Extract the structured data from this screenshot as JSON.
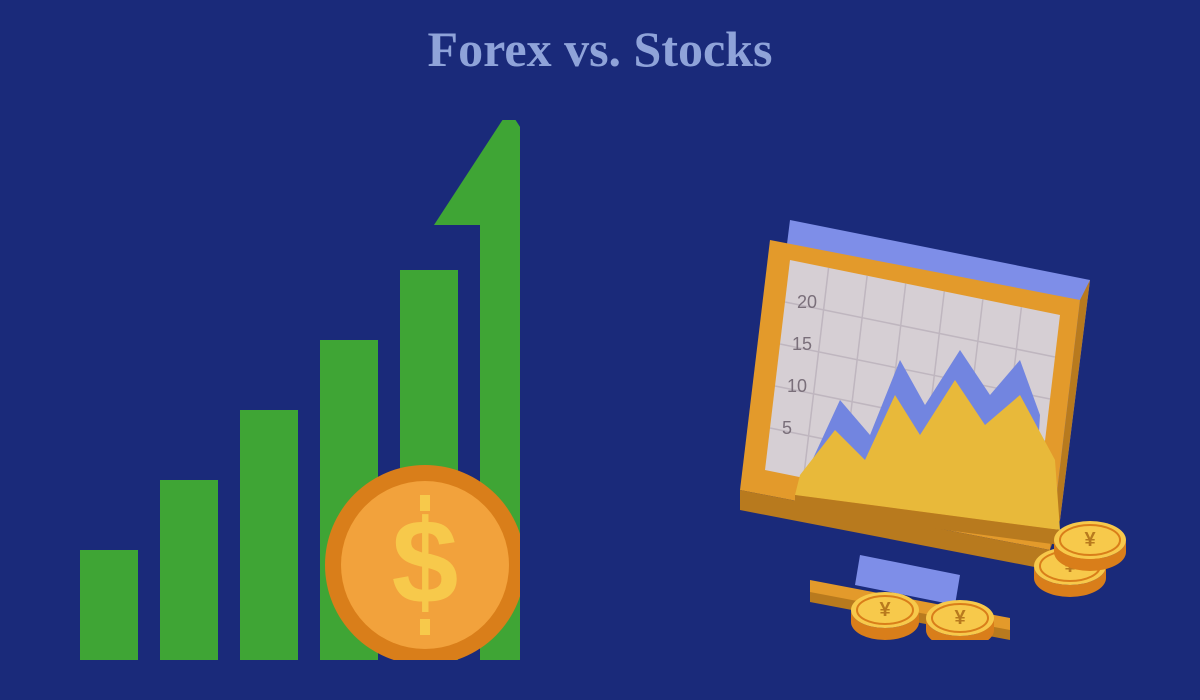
{
  "colors": {
    "background": "#1a2a7a",
    "title_text": "#8fa3d9",
    "bar_green": "#3fa535",
    "bar_green_dark": "#2e7d28",
    "arrow_green": "#3fa535",
    "coin_orange": "#f2a23c",
    "coin_orange_dark": "#d97e1a",
    "coin_yellow": "#f7c94b",
    "monitor_frame": "#e39a2b",
    "monitor_frame_dark": "#b87a1e",
    "monitor_back": "#7e8ee8",
    "monitor_screen": "#d6cfd4",
    "monitor_grid": "#bfb6bf",
    "chart_area_back": "#7285e0",
    "chart_area_front": "#e8b93a",
    "axis_label": "#7a6f7a"
  },
  "title": {
    "text": "Forex vs. Stocks",
    "fontsize": 50,
    "font_family": "Georgia, serif",
    "font_weight": "bold"
  },
  "left": {
    "type": "bar-with-arrow-and-coin",
    "bars": {
      "count": 5,
      "heights": [
        110,
        180,
        250,
        320,
        390
      ],
      "width": 58,
      "gap": 22,
      "color": "#3fa535"
    },
    "arrow": {
      "shaft_height": 440,
      "shaft_width": 58,
      "head_width": 150,
      "head_height": 110,
      "color": "#3fa535"
    },
    "coin": {
      "radius": 100,
      "symbol": "$",
      "outer": "#d97e1a",
      "inner": "#f2a23c",
      "symbol_color": "#f7c94b"
    }
  },
  "right": {
    "type": "isometric-monitor-chart-with-coins",
    "monitor": {
      "frame_color": "#e39a2b",
      "frame_dark": "#b87a1e",
      "back_color": "#7e8ee8",
      "screen_color": "#d6cfd4",
      "grid_color": "#bfb6bf",
      "grid_rows": 5,
      "grid_cols": 7
    },
    "y_axis_labels": [
      "5",
      "10",
      "15",
      "20"
    ],
    "y_axis_label_color": "#7a6f7a",
    "y_axis_label_fontsize": 18,
    "chart_areas": {
      "back_color": "#7285e0",
      "front_color": "#e8b93a"
    },
    "coins": {
      "count": 4,
      "top_color": "#f7c94b",
      "side_color": "#d97e1a",
      "symbol": "¥",
      "symbol_color": "#b87a1e"
    }
  }
}
